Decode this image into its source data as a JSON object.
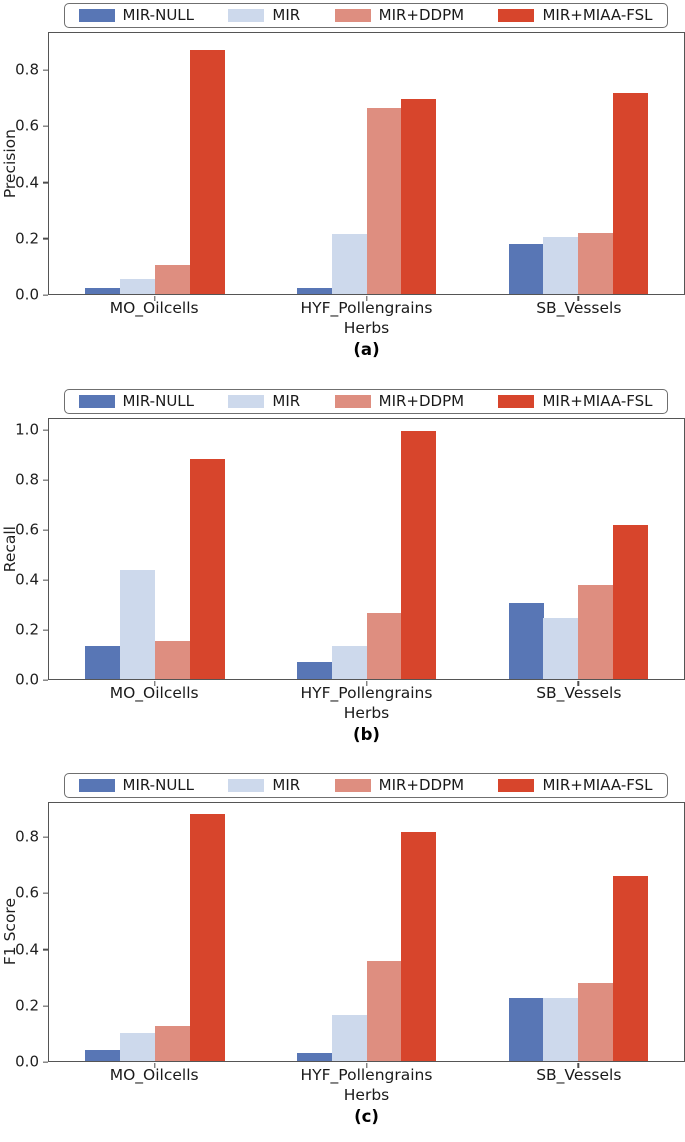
{
  "figure": {
    "background": "#ffffff",
    "axis_color": "#555555",
    "text_color": "#1a1a1a"
  },
  "palette": {
    "mir_null": "#5876b5",
    "mir": "#cdd9ec",
    "mir_ddpm": "#de8e80",
    "mir_miaa_fsl": "#d7452c"
  },
  "legend": {
    "entries": [
      "MIR-NULL",
      "MIR",
      "MIR+DDPM",
      "MIR+MIAA-FSL"
    ],
    "position": "top",
    "border_color": "#6f6f6f"
  },
  "chart_data": [
    {
      "type": "bar",
      "caption": "(a)",
      "ylabel": "Precision",
      "ylim": [
        0,
        0.935
      ],
      "yticks": [
        0,
        0.2,
        0.4,
        0.6,
        0.8
      ],
      "grid": false,
      "legend_position": "top",
      "categories": [
        "MO_Oilcells",
        "HYF_Pollengrains\nHerbs",
        "SB_Vessels"
      ],
      "series": [
        {
          "name": "MIR-NULL",
          "color": "#5876b5",
          "values": [
            0.02,
            0.02,
            0.18
          ]
        },
        {
          "name": "MIR",
          "color": "#cdd9ec",
          "values": [
            0.055,
            0.215,
            0.205
          ]
        },
        {
          "name": "MIR+DDPM",
          "color": "#de8e80",
          "values": [
            0.105,
            0.665,
            0.22
          ]
        },
        {
          "name": "MIR+MIAA-FSL",
          "color": "#d7452c",
          "values": [
            0.875,
            0.7,
            0.72
          ]
        }
      ]
    },
    {
      "type": "bar",
      "caption": "(b)",
      "ylabel": "Recall",
      "ylim": [
        0,
        1.05
      ],
      "yticks": [
        0,
        0.2,
        0.4,
        0.6,
        0.8,
        1.0
      ],
      "grid": false,
      "legend_position": "top",
      "categories": [
        "MO_Oilcells",
        "HYF_Pollengrains\nHerbs",
        "SB_Vessels"
      ],
      "series": [
        {
          "name": "MIR-NULL",
          "color": "#5876b5",
          "values": [
            0.135,
            0.07,
            0.305
          ]
        },
        {
          "name": "MIR",
          "color": "#cdd9ec",
          "values": [
            0.44,
            0.135,
            0.245
          ]
        },
        {
          "name": "MIR+DDPM",
          "color": "#de8e80",
          "values": [
            0.155,
            0.265,
            0.38
          ]
        },
        {
          "name": "MIR+MIAA-FSL",
          "color": "#d7452c",
          "values": [
            0.89,
            1.0,
            0.62
          ]
        }
      ]
    },
    {
      "type": "bar",
      "caption": "(c)",
      "ylabel": "F1 Score",
      "ylim": [
        0,
        0.925
      ],
      "yticks": [
        0,
        0.2,
        0.4,
        0.6,
        0.8
      ],
      "grid": false,
      "legend_position": "top",
      "categories": [
        "MO_Oilcells",
        "HYF_Pollengrains\nHerbs",
        "SB_Vessels"
      ],
      "series": [
        {
          "name": "MIR-NULL",
          "color": "#5876b5",
          "values": [
            0.04,
            0.03,
            0.225
          ]
        },
        {
          "name": "MIR",
          "color": "#cdd9ec",
          "values": [
            0.1,
            0.165,
            0.225
          ]
        },
        {
          "name": "MIR+DDPM",
          "color": "#de8e80",
          "values": [
            0.125,
            0.36,
            0.28
          ]
        },
        {
          "name": "MIR+MIAA-FSL",
          "color": "#d7452c",
          "values": [
            0.885,
            0.82,
            0.665
          ]
        }
      ]
    }
  ]
}
